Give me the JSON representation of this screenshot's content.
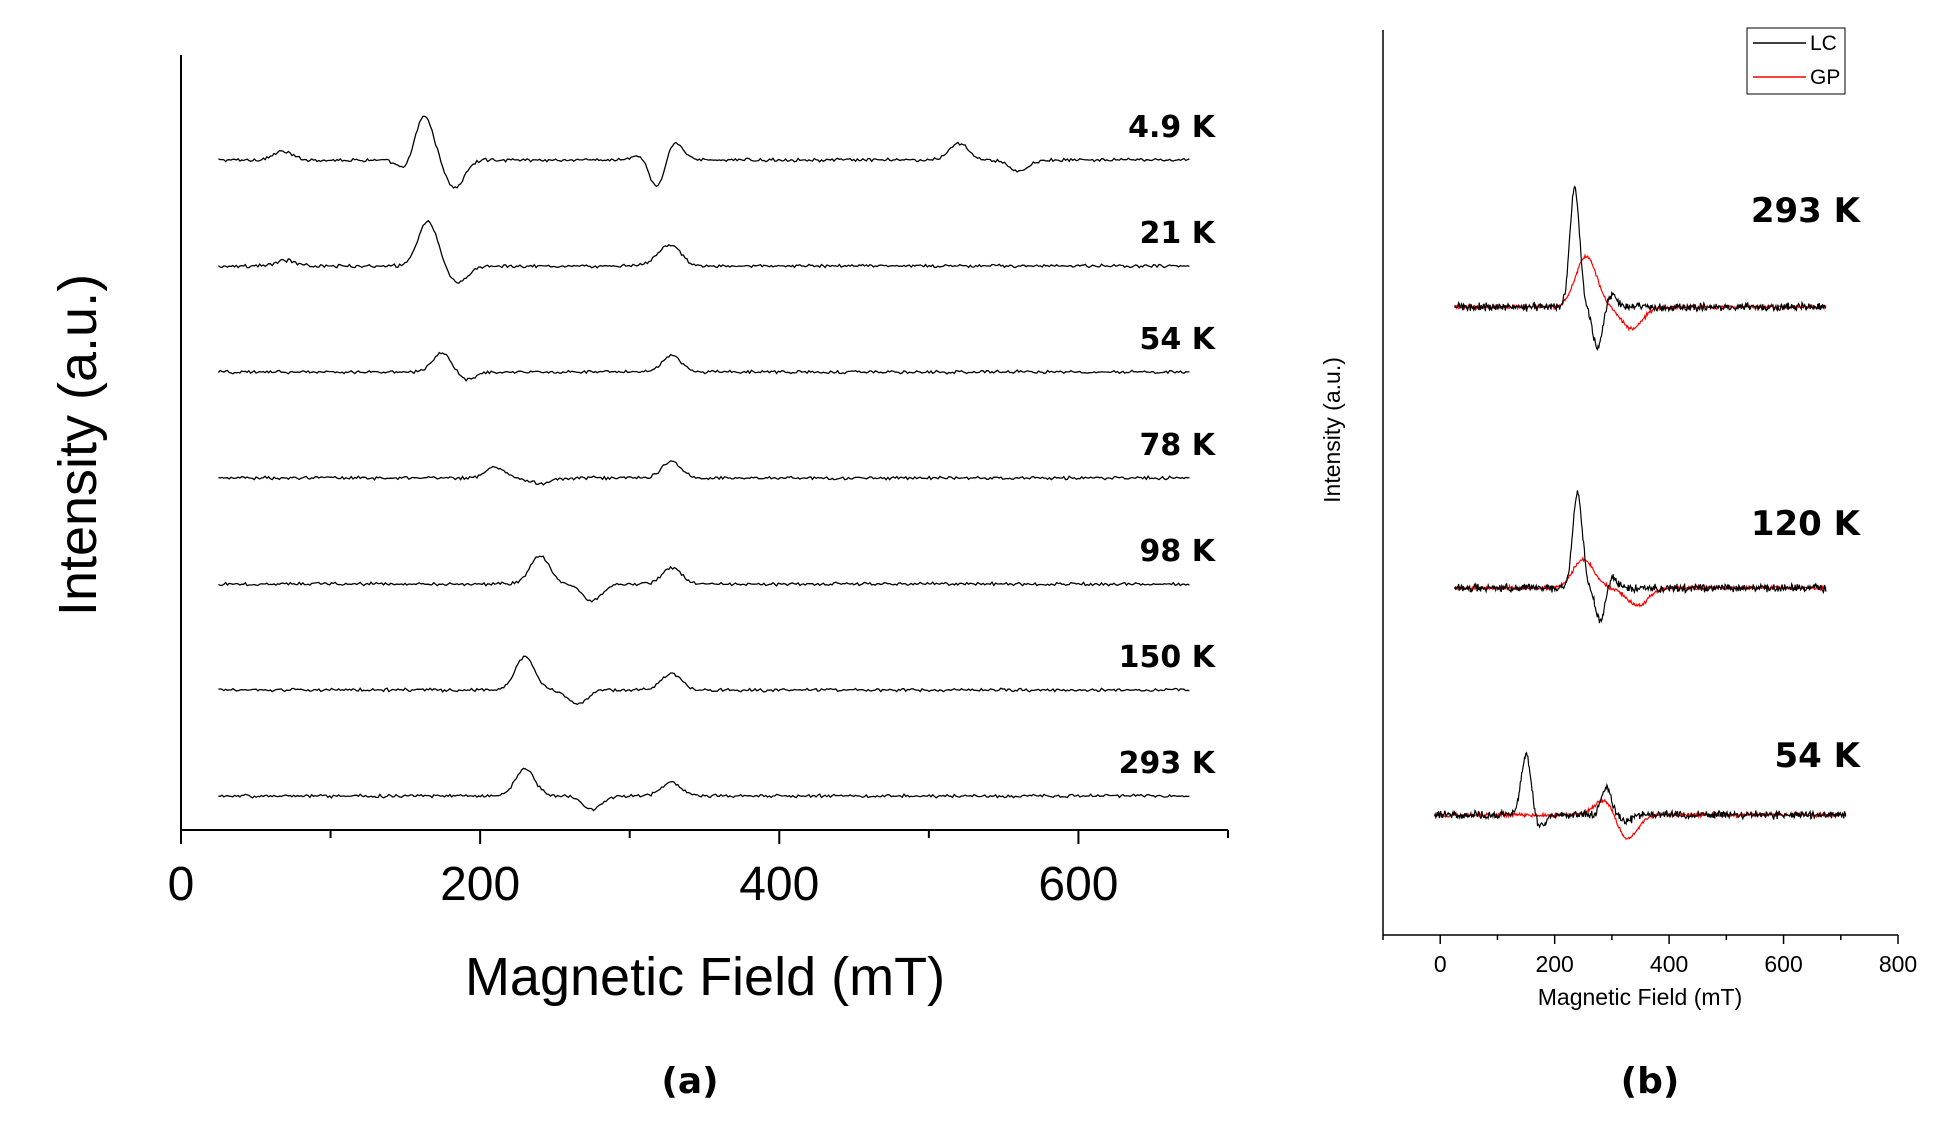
{
  "chart_data": [
    {
      "panel": "(a)",
      "type": "line",
      "xlabel": "Magnetic Field (mT)",
      "ylabel": "Intensity (a.u.)",
      "xlim": [
        0,
        700
      ],
      "xticks": [
        0,
        200,
        400,
        600
      ],
      "x_range_data": [
        25,
        675
      ],
      "series": [
        {
          "name": "4.9 K",
          "features": [
            [
              68,
              0.3
            ],
            [
              152,
              -0.5
            ],
            [
              162,
              1.7
            ],
            [
              183,
              -1.0
            ],
            [
              312,
              0.6
            ],
            [
              318,
              -1.6
            ],
            [
              328,
              0.9
            ],
            [
              520,
              0.6
            ],
            [
              560,
              -0.4
            ]
          ]
        },
        {
          "name": "21 K",
          "features": [
            [
              70,
              0.2
            ],
            [
              165,
              1.6
            ],
            [
              185,
              -0.6
            ],
            [
              318,
              0.2
            ],
            [
              328,
              0.7
            ]
          ]
        },
        {
          "name": "54 K",
          "features": [
            [
              175,
              0.7
            ],
            [
              190,
              -0.3
            ],
            [
              328,
              0.6
            ]
          ]
        },
        {
          "name": "78 K",
          "features": [
            [
              210,
              0.4
            ],
            [
              240,
              -0.2
            ],
            [
              328,
              0.6
            ]
          ]
        },
        {
          "name": "98 K",
          "features": [
            [
              240,
              1.0
            ],
            [
              275,
              -0.6
            ],
            [
              328,
              0.6
            ]
          ]
        },
        {
          "name": "150 K",
          "features": [
            [
              230,
              1.2
            ],
            [
              265,
              -0.5
            ],
            [
              328,
              0.6
            ]
          ]
        },
        {
          "name": "293 K",
          "features": [
            [
              230,
              1.0
            ],
            [
              275,
              -0.5
            ],
            [
              328,
              0.5
            ]
          ]
        }
      ]
    },
    {
      "panel": "(b)",
      "type": "line",
      "xlabel": "Magnetic Field (mT)",
      "ylabel": "Intensity (a.u.)",
      "xlim": [
        -100,
        800
      ],
      "xticks": [
        0,
        200,
        400,
        600,
        800
      ],
      "legend": [
        {
          "name": "LC",
          "color": "#000000"
        },
        {
          "name": "GP",
          "color": "#ff0000"
        }
      ],
      "groups": [
        {
          "temperature": "293 K",
          "LC_range": [
            25,
            675
          ],
          "GP_range": [
            25,
            675
          ],
          "LC_features": [
            [
              235,
              5.4
            ],
            [
              275,
              -1.8
            ],
            [
              300,
              0.6
            ]
          ],
          "GP_features": [
            [
              255,
              2.3
            ],
            [
              335,
              -1.0
            ]
          ]
        },
        {
          "temperature": "120 K",
          "LC_range": [
            25,
            675
          ],
          "GP_range": [
            25,
            675
          ],
          "LC_features": [
            [
              240,
              4.3
            ],
            [
              280,
              -1.5
            ],
            [
              300,
              0.5
            ]
          ],
          "GP_features": [
            [
              250,
              1.3
            ],
            [
              345,
              -0.8
            ]
          ]
        },
        {
          "temperature": "54 K",
          "LC_range": [
            -10,
            710
          ],
          "GP_range": [
            -10,
            710
          ],
          "LC_features": [
            [
              150,
              2.7
            ],
            [
              175,
              -0.5
            ],
            [
              290,
              1.3
            ],
            [
              325,
              -0.3
            ]
          ],
          "GP_features": [
            [
              290,
              0.8
            ],
            [
              325,
              -1.2
            ]
          ]
        }
      ]
    }
  ],
  "labels": {
    "panel_a": "(a)",
    "panel_b": "(b)"
  },
  "colors": {
    "lc": "#000000",
    "gp": "#ff0000",
    "axis": "#000000"
  }
}
